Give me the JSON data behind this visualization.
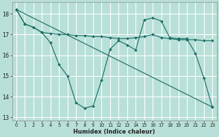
{
  "bg_color": "#b8e0d8",
  "grid_color": "#ffffff",
  "line_color": "#1a6e64",
  "xlabel": "Humidex (Indice chaleur)",
  "xlim": [
    -0.5,
    23.5
  ],
  "ylim": [
    12.85,
    18.55
  ],
  "yticks": [
    13,
    14,
    15,
    16,
    17,
    18
  ],
  "xticks": [
    0,
    1,
    2,
    3,
    4,
    5,
    6,
    7,
    8,
    9,
    10,
    11,
    12,
    13,
    14,
    15,
    16,
    17,
    18,
    19,
    20,
    21,
    22,
    23
  ],
  "line1_x": [
    0,
    1,
    2,
    3,
    4,
    5,
    6,
    7,
    8,
    9,
    10,
    11,
    12,
    13,
    14,
    15,
    16,
    17,
    18,
    19,
    20,
    21,
    22,
    23
  ],
  "line1_y": [
    18.2,
    17.5,
    17.35,
    17.1,
    16.6,
    15.55,
    15.0,
    13.7,
    13.45,
    13.55,
    14.8,
    16.3,
    16.7,
    16.5,
    16.25,
    17.7,
    17.8,
    17.65,
    16.85,
    16.8,
    16.8,
    16.1,
    14.9,
    13.5
  ],
  "line2_x": [
    0,
    23
  ],
  "line2_y": [
    18.2,
    13.5
  ],
  "line3_x": [
    0,
    1,
    2,
    3,
    4,
    5,
    6,
    7,
    8,
    9,
    10,
    11,
    12,
    13,
    14,
    15,
    16,
    17,
    18,
    19,
    20,
    21,
    22,
    23
  ],
  "line3_y": [
    18.2,
    17.5,
    17.35,
    17.1,
    17.05,
    17.0,
    17.0,
    16.95,
    16.95,
    16.9,
    16.9,
    16.85,
    16.8,
    16.8,
    16.85,
    16.9,
    17.0,
    16.85,
    16.8,
    16.75,
    16.75,
    16.75,
    16.7,
    16.7
  ]
}
